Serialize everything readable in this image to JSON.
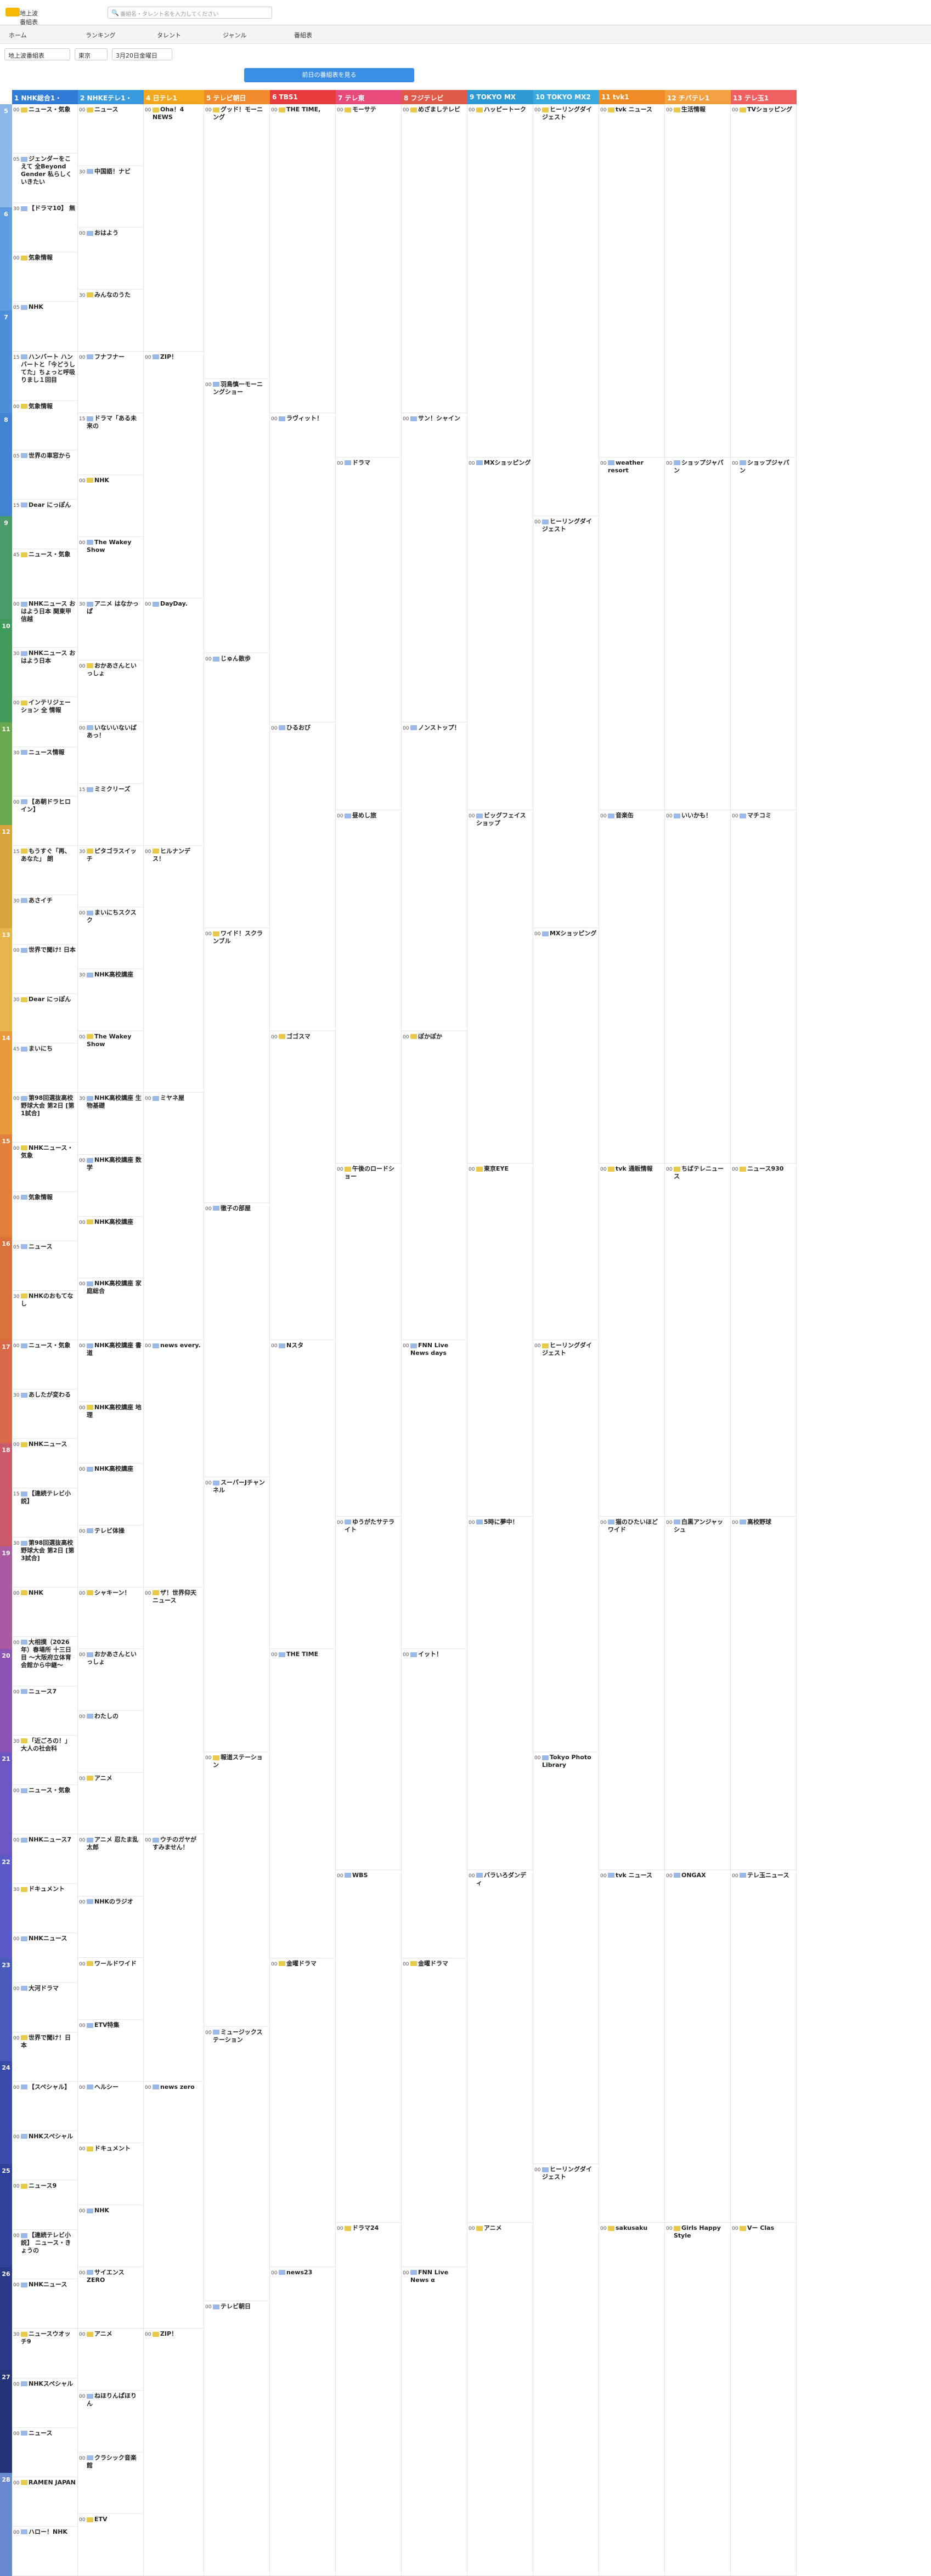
{
  "header": {
    "logo_text": "地上波番組表",
    "search_placeholder": "番組名・タレント名を入力してください"
  },
  "menu": [
    {
      "label": "ホーム"
    },
    {
      "label": "ランキング"
    },
    {
      "label": "タレント"
    },
    {
      "label": "ジャンル"
    },
    {
      "label": "番組表"
    }
  ],
  "filters": {
    "type": "地上波番組表",
    "area": "東京",
    "date": "3月20日金曜日"
  },
  "prev_button": "前日の番組表を見る",
  "channels": [
    {
      "num": "1",
      "name": "NHK総合1・",
      "color": "#2f7bd6"
    },
    {
      "num": "2",
      "name": "NHKEテレ1・",
      "color": "#3a9ae0"
    },
    {
      "num": "4",
      "name": "日テレ1",
      "color": "#f2a71e"
    },
    {
      "num": "5",
      "name": "テレビ朝日",
      "color": "#f08a2a"
    },
    {
      "num": "6",
      "name": "TBS1",
      "color": "#e83b3b"
    },
    {
      "num": "7",
      "name": "テレ東",
      "color": "#e84b7a"
    },
    {
      "num": "8",
      "name": "フジテレビ",
      "color": "#e05a4a"
    },
    {
      "num": "9",
      "name": "TOKYO MX",
      "color": "#2d9ad6"
    },
    {
      "num": "10",
      "name": "TOKYO MX2",
      "color": "#3aa9e0"
    },
    {
      "num": "11",
      "name": "tvk1",
      "color": "#f08c26"
    },
    {
      "num": "12",
      "name": "チバテレ1",
      "color": "#f2a040"
    },
    {
      "num": "13",
      "name": "テレ玉1",
      "color": "#f06060"
    }
  ],
  "hours": [
    {
      "h": "5",
      "color": "#8bb8e8"
    },
    {
      "h": "6",
      "color": "#5b9de0"
    },
    {
      "h": "7",
      "color": "#4c8fd8"
    },
    {
      "h": "8",
      "color": "#3f84d0"
    },
    {
      "h": "9",
      "color": "#4a9b6a"
    },
    {
      "h": "10",
      "color": "#3e9b5a"
    },
    {
      "h": "11",
      "color": "#6aa84f"
    },
    {
      "h": "12",
      "color": "#d9a43a"
    },
    {
      "h": "13",
      "color": "#e6b54a"
    },
    {
      "h": "14",
      "color": "#e89a3a"
    },
    {
      "h": "15",
      "color": "#e0803a"
    },
    {
      "h": "16",
      "color": "#d9713a"
    },
    {
      "h": "17",
      "color": "#d86a4a"
    },
    {
      "h": "18",
      "color": "#c85a6a"
    },
    {
      "h": "19",
      "color": "#a95aa0"
    },
    {
      "h": "20",
      "color": "#8c55b5"
    },
    {
      "h": "21",
      "color": "#6a58c0"
    },
    {
      "h": "22",
      "color": "#5a5ac8"
    },
    {
      "h": "23",
      "color": "#4a5ab8"
    },
    {
      "h": "24",
      "color": "#3a4aa8"
    },
    {
      "h": "25",
      "color": "#2f4098"
    },
    {
      "h": "26",
      "color": "#2a3a88"
    },
    {
      "h": "27",
      "color": "#253478"
    },
    {
      "h": "28",
      "color": "#6a8ad0"
    }
  ],
  "programs": [
    [
      {
        "m": "00",
        "t": "ニュース・気象",
        "d": ""
      },
      {
        "m": "05",
        "t": "ジェンダーをこえて 全Beyond Gender 私らしくいきたい",
        "d": ""
      },
      {
        "m": "30",
        "t": "【ドラマ10】 無",
        "d": ""
      },
      {
        "m": "00",
        "t": "気象情報",
        "d": ""
      },
      {
        "m": "05",
        "t": "NHK",
        "d": ""
      },
      {
        "m": "15",
        "t": "ハンバート ハンバートと「今どうしてた」ちょっと呼吸りまし１回目",
        "d": ""
      },
      {
        "m": "00",
        "t": "気象情報",
        "d": ""
      },
      {
        "m": "05",
        "t": "世界の車窓から",
        "d": ""
      },
      {
        "m": "15",
        "t": "Dear にっぽん",
        "d": ""
      },
      {
        "m": "45",
        "t": "ニュース・気象",
        "d": ""
      },
      {
        "m": "00",
        "t": "NHKニュース おはよう日本 関東甲信越",
        "d": ""
      },
      {
        "m": "30",
        "t": "NHKニュース おはよう日本",
        "d": ""
      },
      {
        "m": "00",
        "t": "インテリジェーション 全 情報",
        "d": ""
      },
      {
        "m": "30",
        "t": "ニュース情報",
        "d": ""
      },
      {
        "m": "00",
        "t": "【あ朝ドラヒロイン】",
        "d": ""
      },
      {
        "m": "15",
        "t": "もうすぐ「再、あなた」 朗",
        "d": ""
      },
      {
        "m": "30",
        "t": "あさイチ",
        "d": ""
      },
      {
        "m": "00",
        "t": "世界で聞け! 日本",
        "d": ""
      },
      {
        "m": "30",
        "t": "Dear にっぽん",
        "d": ""
      },
      {
        "m": "45",
        "t": "まいにち",
        "d": ""
      },
      {
        "m": "00",
        "t": "第98回選抜高校野球大会 第2日 [第1試合]",
        "d": ""
      },
      {
        "m": "00",
        "t": "NHKニュース・気象",
        "d": ""
      },
      {
        "m": "00",
        "t": "気象情報",
        "d": ""
      },
      {
        "m": "05",
        "t": "ニュース",
        "d": ""
      },
      {
        "m": "30",
        "t": "NHKのおもてなし",
        "d": ""
      },
      {
        "m": "00",
        "t": "ニュース・気象",
        "d": ""
      },
      {
        "m": "30",
        "t": "あしたが変わる",
        "d": ""
      },
      {
        "m": "00",
        "t": "NHKニュース",
        "d": ""
      },
      {
        "m": "15",
        "t": "【連続テレビ小説】",
        "d": ""
      },
      {
        "m": "30",
        "t": "第98回選抜高校野球大会 第2日 [第3試合]",
        "d": ""
      },
      {
        "m": "00",
        "t": "NHK",
        "d": ""
      },
      {
        "m": "00",
        "t": "大相撲（2026年）春場所 十三日目 ～大阪府立体育会館から中継～",
        "d": ""
      },
      {
        "m": "00",
        "t": "ニュース7",
        "d": ""
      },
      {
        "m": "30",
        "t": "「近ごろの！」 大人の社会科",
        "d": ""
      },
      {
        "m": "00",
        "t": "ニュース・気象",
        "d": ""
      },
      {
        "m": "00",
        "t": "NHKニュース7",
        "d": ""
      },
      {
        "m": "30",
        "t": "ドキュメント",
        "d": ""
      },
      {
        "m": "00",
        "t": "NHKニュース",
        "d": ""
      },
      {
        "m": "00",
        "t": "大河ドラマ",
        "d": ""
      },
      {
        "m": "00",
        "t": "世界で聞け！日本",
        "d": ""
      },
      {
        "m": "00",
        "t": "【スペシャル】",
        "d": ""
      },
      {
        "m": "00",
        "t": "NHKスペシャル",
        "d": ""
      },
      {
        "m": "00",
        "t": "ニュース9",
        "d": ""
      },
      {
        "m": "00",
        "t": "【連続テレビ小説】 ニュース・きょうの",
        "d": ""
      },
      {
        "m": "00",
        "t": "NHKニュース",
        "d": ""
      },
      {
        "m": "30",
        "t": "ニュースウオッチ9",
        "d": ""
      },
      {
        "m": "00",
        "t": "NHKスペシャル",
        "d": ""
      },
      {
        "m": "00",
        "t": "ニュース",
        "d": ""
      },
      {
        "m": "00",
        "t": "RAMEN JAPAN",
        "d": ""
      },
      {
        "m": "00",
        "t": "ハロー！NHK",
        "d": ""
      }
    ],
    [
      {
        "m": "00",
        "t": "ニュース",
        "d": ""
      },
      {
        "m": "30",
        "t": "中国語！ナビ",
        "d": ""
      },
      {
        "m": "00",
        "t": "おはよう",
        "d": ""
      },
      {
        "m": "30",
        "t": "みんなのうた",
        "d": ""
      },
      {
        "m": "00",
        "t": "フナフナー",
        "d": ""
      },
      {
        "m": "15",
        "t": "ドラマ「ある未来の",
        "d": ""
      },
      {
        "m": "00",
        "t": "NHK",
        "d": ""
      },
      {
        "m": "00",
        "t": "The Wakey Show",
        "d": ""
      },
      {
        "m": "30",
        "t": "アニメ はなかっぱ",
        "d": ""
      },
      {
        "m": "00",
        "t": "おかあさんといっしょ",
        "d": ""
      },
      {
        "m": "00",
        "t": "いないいないばあっ！",
        "d": ""
      },
      {
        "m": "15",
        "t": "ミミクリーズ",
        "d": ""
      },
      {
        "m": "30",
        "t": "ピタゴラスイッチ",
        "d": ""
      },
      {
        "m": "00",
        "t": "まいにちスクスク",
        "d": ""
      },
      {
        "m": "30",
        "t": "NHK高校講座",
        "d": ""
      },
      {
        "m": "00",
        "t": "The Wakey Show",
        "d": ""
      },
      {
        "m": "30",
        "t": "NHK高校講座 生物基礎",
        "d": ""
      },
      {
        "m": "00",
        "t": "NHK高校講座 数学",
        "d": ""
      },
      {
        "m": "00",
        "t": "NHK高校講座",
        "d": ""
      },
      {
        "m": "00",
        "t": "NHK高校講座 家庭総合",
        "d": ""
      },
      {
        "m": "00",
        "t": "NHK高校講座 書道",
        "d": ""
      },
      {
        "m": "00",
        "t": "NHK高校講座 地理",
        "d": ""
      },
      {
        "m": "00",
        "t": "NHK高校講座",
        "d": ""
      },
      {
        "m": "00",
        "t": "テレビ体操",
        "d": ""
      },
      {
        "m": "00",
        "t": "シャキーン！",
        "d": ""
      },
      {
        "m": "00",
        "t": "おかあさんといっしょ",
        "d": ""
      },
      {
        "m": "00",
        "t": "わたしの",
        "d": ""
      },
      {
        "m": "00",
        "t": "アニメ",
        "d": ""
      },
      {
        "m": "00",
        "t": "アニメ 忍たま乱太郎",
        "d": ""
      },
      {
        "m": "00",
        "t": "NHKのラジオ",
        "d": ""
      },
      {
        "m": "00",
        "t": "ワールドワイド",
        "d": ""
      },
      {
        "m": "00",
        "t": "ETV特集",
        "d": ""
      },
      {
        "m": "00",
        "t": "ヘルシー",
        "d": ""
      },
      {
        "m": "00",
        "t": "ドキュメント",
        "d": ""
      },
      {
        "m": "00",
        "t": "NHK",
        "d": ""
      },
      {
        "m": "00",
        "t": "サイエンスZERO",
        "d": ""
      },
      {
        "m": "00",
        "t": "アニメ",
        "d": ""
      },
      {
        "m": "00",
        "t": "ねほりんぱほりん",
        "d": ""
      },
      {
        "m": "00",
        "t": "クラシック音楽館",
        "d": ""
      },
      {
        "m": "00",
        "t": "ETV",
        "d": ""
      }
    ],
    [
      {
        "m": "00",
        "t": "Oha！4 NEWS",
        "d": ""
      },
      {
        "m": "00",
        "t": "ZIP！",
        "d": ""
      },
      {
        "m": "00",
        "t": "DayDay.",
        "d": ""
      },
      {
        "m": "00",
        "t": "ヒルナンデス！",
        "d": ""
      },
      {
        "m": "00",
        "t": "ミヤネ屋",
        "d": ""
      },
      {
        "m": "00",
        "t": "news every.",
        "d": ""
      },
      {
        "m": "00",
        "t": "ザ！世界仰天ニュース",
        "d": ""
      },
      {
        "m": "00",
        "t": "ウチのガヤがすみません！",
        "d": ""
      },
      {
        "m": "00",
        "t": "news zero",
        "d": ""
      },
      {
        "m": "00",
        "t": "ZIP！",
        "d": ""
      }
    ],
    [
      {
        "m": "00",
        "t": "グッド！モーニング",
        "d": ""
      },
      {
        "m": "00",
        "t": "羽鳥慎一モーニングショー",
        "d": ""
      },
      {
        "m": "00",
        "t": "じゅん散歩",
        "d": ""
      },
      {
        "m": "00",
        "t": "ワイド！スクランブル",
        "d": ""
      },
      {
        "m": "00",
        "t": "徹子の部屋",
        "d": ""
      },
      {
        "m": "00",
        "t": "スーパーJチャンネル",
        "d": ""
      },
      {
        "m": "00",
        "t": "報道ステーション",
        "d": ""
      },
      {
        "m": "00",
        "t": "ミュージックステーション",
        "d": ""
      },
      {
        "m": "00",
        "t": "テレビ朝日",
        "d": ""
      }
    ],
    [
      {
        "m": "00",
        "t": "THE TIME,",
        "d": ""
      },
      {
        "m": "00",
        "t": "ラヴィット！",
        "d": ""
      },
      {
        "m": "00",
        "t": "ひるおび",
        "d": ""
      },
      {
        "m": "00",
        "t": "ゴゴスマ",
        "d": ""
      },
      {
        "m": "00",
        "t": "Nスタ",
        "d": ""
      },
      {
        "m": "00",
        "t": "THE TIME",
        "d": ""
      },
      {
        "m": "00",
        "t": "金曜ドラマ",
        "d": ""
      },
      {
        "m": "00",
        "t": "news23",
        "d": ""
      }
    ],
    [
      {
        "m": "00",
        "t": "モーサテ",
        "d": ""
      },
      {
        "m": "00",
        "t": "ドラマ",
        "d": ""
      },
      {
        "m": "00",
        "t": "昼めし旅",
        "d": ""
      },
      {
        "m": "00",
        "t": "午後のロードショー",
        "d": ""
      },
      {
        "m": "00",
        "t": "ゆうがたサテライト",
        "d": ""
      },
      {
        "m": "00",
        "t": "WBS",
        "d": ""
      },
      {
        "m": "00",
        "t": "ドラマ24",
        "d": ""
      }
    ],
    [
      {
        "m": "00",
        "t": "めざましテレビ",
        "d": ""
      },
      {
        "m": "00",
        "t": "サン！シャイン",
        "d": ""
      },
      {
        "m": "00",
        "t": "ノンストップ！",
        "d": ""
      },
      {
        "m": "00",
        "t": "ぽかぽか",
        "d": ""
      },
      {
        "m": "00",
        "t": "FNN Live News days",
        "d": ""
      },
      {
        "m": "00",
        "t": "イット！",
        "d": ""
      },
      {
        "m": "00",
        "t": "金曜ドラマ",
        "d": ""
      },
      {
        "m": "00",
        "t": "FNN Live News α",
        "d": ""
      }
    ],
    [
      {
        "m": "00",
        "t": "ハッピートーク",
        "d": ""
      },
      {
        "m": "00",
        "t": "MXショッピング",
        "d": ""
      },
      {
        "m": "00",
        "t": "ビッグフェイスショップ",
        "d": ""
      },
      {
        "m": "00",
        "t": "東京EYE",
        "d": ""
      },
      {
        "m": "00",
        "t": "5時に夢中！",
        "d": ""
      },
      {
        "m": "00",
        "t": "バラいろダンディ",
        "d": ""
      },
      {
        "m": "00",
        "t": "アニメ",
        "d": ""
      }
    ],
    [
      {
        "m": "00",
        "t": "ヒーリングダイジェスト",
        "d": ""
      },
      {
        "m": "00",
        "t": "ヒーリングダイジェスト",
        "d": ""
      },
      {
        "m": "00",
        "t": "MXショッピング",
        "d": ""
      },
      {
        "m": "00",
        "t": "ヒーリングダイジェスト",
        "d": ""
      },
      {
        "m": "00",
        "t": "Tokyo Photo Library",
        "d": ""
      },
      {
        "m": "00",
        "t": "ヒーリングダイジェスト",
        "d": ""
      }
    ],
    [
      {
        "m": "00",
        "t": "tvk ニュース",
        "d": ""
      },
      {
        "m": "00",
        "t": "weather resort",
        "d": ""
      },
      {
        "m": "00",
        "t": "音楽缶",
        "d": ""
      },
      {
        "m": "00",
        "t": "tvk 通販情報",
        "d": ""
      },
      {
        "m": "00",
        "t": "猫のひたいほどワイド",
        "d": ""
      },
      {
        "m": "00",
        "t": "tvk ニュース",
        "d": ""
      },
      {
        "m": "00",
        "t": "sakusaku",
        "d": ""
      }
    ],
    [
      {
        "m": "00",
        "t": "生活情報",
        "d": ""
      },
      {
        "m": "00",
        "t": "ショップジャパン",
        "d": ""
      },
      {
        "m": "00",
        "t": "いいかも！",
        "d": ""
      },
      {
        "m": "00",
        "t": "ちばテレニュース",
        "d": ""
      },
      {
        "m": "00",
        "t": "白黒アンジャッシュ",
        "d": ""
      },
      {
        "m": "00",
        "t": "ONGAX",
        "d": ""
      },
      {
        "m": "00",
        "t": "Girls Happy Style",
        "d": ""
      }
    ],
    [
      {
        "m": "00",
        "t": "TVショッピング",
        "d": ""
      },
      {
        "m": "00",
        "t": "ショップジャパン",
        "d": ""
      },
      {
        "m": "00",
        "t": "マチコミ",
        "d": ""
      },
      {
        "m": "00",
        "t": "ニュース930",
        "d": ""
      },
      {
        "m": "00",
        "t": "高校野球",
        "d": ""
      },
      {
        "m": "00",
        "t": "テレ玉ニュース",
        "d": ""
      },
      {
        "m": "00",
        "t": "Vー Clas",
        "d": ""
      }
    ]
  ]
}
